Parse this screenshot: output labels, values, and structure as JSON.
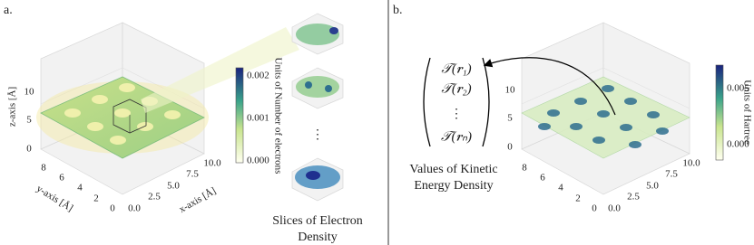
{
  "panel_a": {
    "label": "a.",
    "z_axis_label": "z-axis [Å]",
    "y_axis_label": "y-axis [Å]",
    "x_axis_label": "x-axis [Å]",
    "z_ticks": [
      "0",
      "5",
      "10"
    ],
    "y_ticks": [
      "0",
      "2",
      "4",
      "6",
      "8"
    ],
    "x_ticks": [
      "0.0",
      "2.5",
      "5.0",
      "7.5",
      "10.0"
    ],
    "colorbar_label": "Units of Number of electrons",
    "colorbar_ticks": [
      "0.000",
      "0.001",
      "0.002"
    ],
    "slices_caption": [
      "Slices of Electron",
      "Density"
    ],
    "ellipsis": "⋮"
  },
  "panel_b": {
    "label": "b.",
    "vector": [
      "𝒯(𝒓₁)",
      "𝒯(𝒓₂)",
      "⋮",
      "𝒯(𝒓ₙ)"
    ],
    "caption": [
      "Values of Kinetic",
      "Energy Density"
    ],
    "z_ticks": [
      "0",
      "5",
      "10"
    ],
    "y_ticks": [
      "0",
      "2",
      "4",
      "6",
      "8"
    ],
    "x_ticks": [
      "0.0",
      "2.5",
      "5.0",
      "7.5",
      "10.0"
    ],
    "colorbar_label": "Units of Hartree",
    "colorbar_ticks": [
      "0.000",
      "0.005"
    ]
  }
}
